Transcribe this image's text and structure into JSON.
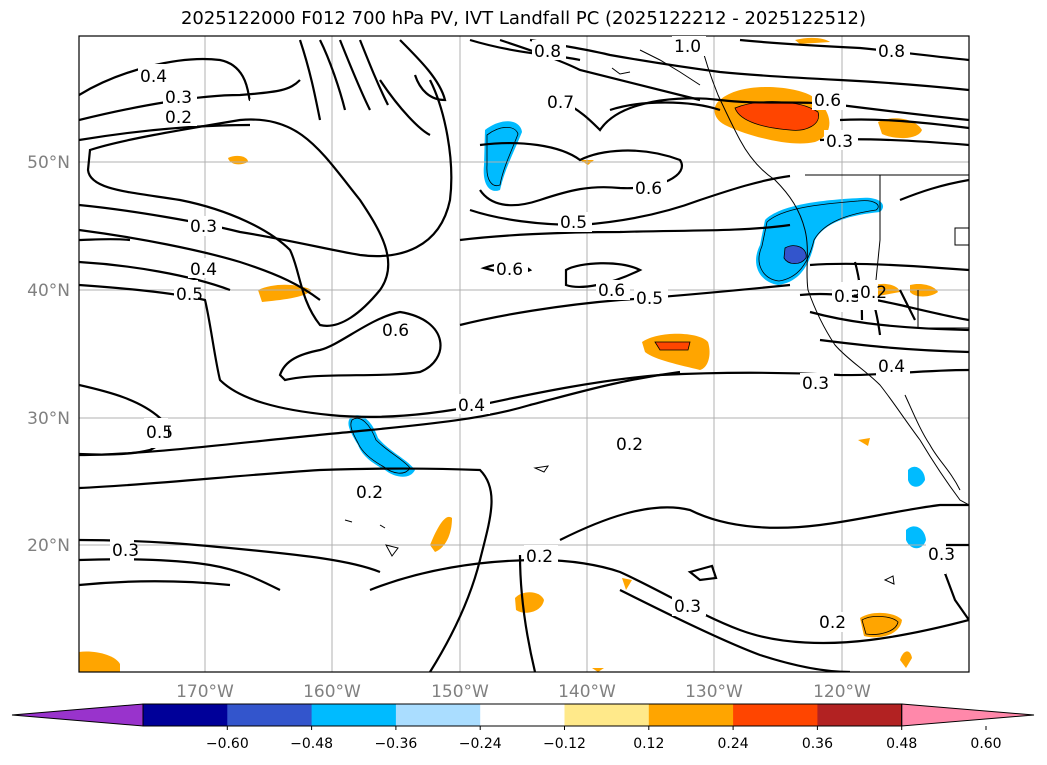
{
  "title": "2025122000 F012 700 hPa PV, IVT Landfall PC (2025122212 - 2025122512)",
  "map": {
    "lon_labels": [
      "170°W",
      "160°W",
      "150°W",
      "140°W",
      "130°W",
      "120°W"
    ],
    "lat_labels": [
      "50°N",
      "40°N",
      "30°N",
      "20°N"
    ],
    "contour_labels": [
      "0.4",
      "0.3",
      "0.2",
      "0.8",
      "1.0",
      "0.8",
      "0.7",
      "0.6",
      "0.3",
      "0.6",
      "0.5",
      "0.3",
      "0.4",
      "0.5",
      "0.6",
      "0.6",
      "0.5",
      "0.6",
      "0.3",
      "0.3",
      "0.2",
      "0.4",
      "0.4",
      "0.5",
      "0.2",
      "0.2",
      "0.3",
      "0.2",
      "0.3",
      "0.2",
      "0.3"
    ]
  },
  "colorbar": {
    "colors": [
      "#9933cc",
      "#000099",
      "#3355cc",
      "#00bbff",
      "#aaddff",
      "#ffffff",
      "#ffe98a",
      "#ffa500",
      "#ff4500",
      "#b22222",
      "#ff88aa"
    ],
    "tick_labels": [
      "−0.60",
      "−0.48",
      "−0.36",
      "−0.24",
      "−0.12",
      "0.12",
      "0.24",
      "0.36",
      "0.48",
      "0.60"
    ]
  }
}
